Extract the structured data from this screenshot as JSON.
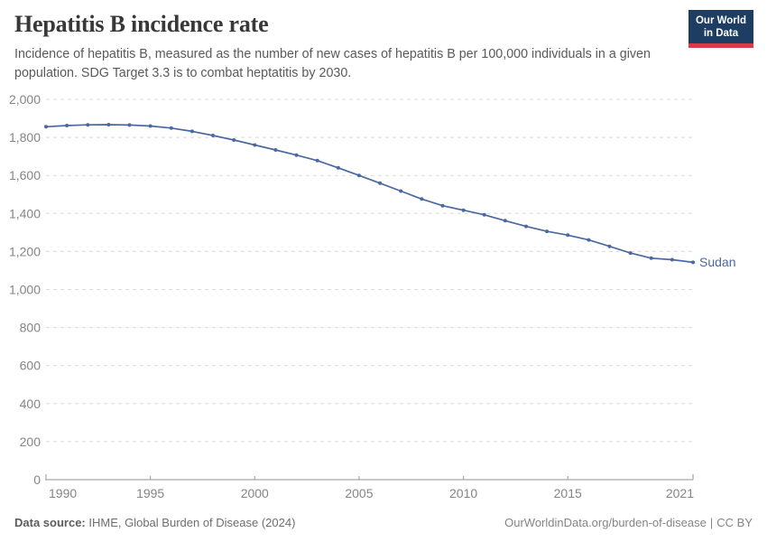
{
  "header": {
    "title": "Hepatitis B incidence rate",
    "subtitle": "Incidence of hepatitis B, measured as the number of new cases of hepatitis B per 100,000 individuals in a given population. SDG Target 3.3 is to combat heptatitis by 2030.",
    "logo": {
      "line1": "Our World",
      "line2": "in Data"
    }
  },
  "chart_data": {
    "type": "line",
    "title": "Hepatitis B incidence rate",
    "xlabel": "",
    "ylabel": "",
    "xlim": [
      1990,
      2021
    ],
    "ylim": [
      0,
      2000
    ],
    "x_ticks": [
      1990,
      1995,
      2000,
      2005,
      2010,
      2015,
      2021
    ],
    "y_ticks": [
      0,
      200,
      400,
      600,
      800,
      1000,
      1200,
      1400,
      1600,
      1800,
      2000
    ],
    "grid": "horizontal-dashed",
    "legend_position": "line-end-label",
    "x": [
      1990,
      1991,
      1992,
      1993,
      1994,
      1995,
      1996,
      1997,
      1998,
      1999,
      2000,
      2001,
      2002,
      2003,
      2004,
      2005,
      2006,
      2007,
      2008,
      2009,
      2010,
      2011,
      2012,
      2013,
      2014,
      2015,
      2016,
      2017,
      2018,
      2019,
      2020,
      2021
    ],
    "series": [
      {
        "name": "Sudan",
        "color": "#4b69a0",
        "values": [
          1856,
          1862,
          1866,
          1867,
          1865,
          1860,
          1849,
          1832,
          1810,
          1786,
          1760,
          1734,
          1707,
          1678,
          1640,
          1600,
          1559,
          1518,
          1476,
          1441,
          1417,
          1393,
          1362,
          1332,
          1306,
          1286,
          1261,
          1227,
          1192,
          1165,
          1157,
          1143
        ]
      }
    ]
  },
  "footer": {
    "datasource_label": "Data source:",
    "datasource_value": "IHME, Global Burden of Disease (2024)",
    "url": "OurWorldinData.org/burden-of-disease",
    "separator": "|",
    "license": "CC BY"
  },
  "colors": {
    "line": "#4b69a0",
    "grid": "#dadada",
    "axis": "#a8a8a8",
    "tick_label": "#858585",
    "title": "#383838",
    "subtitle": "#5a5a5a",
    "footer": "#6e6e6e",
    "logo_bg": "#1d3d63",
    "logo_accent": "#d93a4a"
  }
}
